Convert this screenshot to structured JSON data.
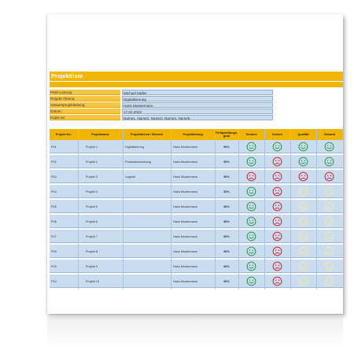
{
  "title": "Projektliste",
  "info": [
    {
      "label": "PMO-Leitung:",
      "value": "Michael Müller"
    },
    {
      "label": "Projekt-Thema:",
      "value": "Digitalisierung"
    },
    {
      "label": "Gesamtprojektleitung:",
      "value": "Hans Mustermann"
    },
    {
      "label": "Datum:",
      "value": "17.02.2023"
    },
    {
      "label": "Kopie an:",
      "value": "Name1, Name2, Name3, Name4, Name5"
    }
  ],
  "headers": {
    "nr": "Projekt-Nr.:",
    "name": "Projektname",
    "thema": "Projektthema / Bereich",
    "leitung": "Projektleitung",
    "grad": "Fertigstellungs-grad",
    "termine": "Termine",
    "kosten": "Kosten",
    "qualitaet": "Qualität",
    "gesamt": "Gesamt"
  },
  "colors": {
    "accent": "#f2b600",
    "row": "#c9dcf0",
    "good": "#2e9a46",
    "bad": "#d6262c",
    "neutral": "#f3e9a6"
  },
  "rows": [
    {
      "nr": "P01",
      "name": "Projekt 1",
      "thema": "Digitalisierung",
      "leitung": "Hans Mustermann",
      "grad": "50%",
      "status": [
        "good",
        "good",
        "good",
        "good"
      ]
    },
    {
      "nr": "P02",
      "name": "Projekt 2",
      "thema": "Produktentwicklung",
      "leitung": "Hans Mustermann",
      "grad": "50%",
      "status": [
        "good",
        "bad",
        "good",
        "good"
      ]
    },
    {
      "nr": "P03",
      "name": "Projekt 3",
      "thema": "Logistik",
      "leitung": "Hans Mustermann",
      "grad": "50%",
      "status": [
        "bad",
        "bad",
        "bad",
        "bad"
      ]
    },
    {
      "nr": "P04",
      "name": "Projekt 4",
      "thema": "",
      "leitung": "Hans Mustermann",
      "grad": "50%",
      "status": [
        "good",
        "bad",
        "neutral",
        "neutral"
      ]
    },
    {
      "nr": "P05",
      "name": "Projekt 5",
      "thema": "",
      "leitung": "Hans Mustermann",
      "grad": "50%",
      "status": [
        "good",
        "bad",
        "neutral",
        "neutral"
      ]
    },
    {
      "nr": "P06",
      "name": "Projekt 6",
      "thema": "",
      "leitung": "Hans Mustermann",
      "grad": "50%",
      "status": [
        "good",
        "bad",
        "neutral",
        "neutral"
      ]
    },
    {
      "nr": "P07",
      "name": "Projekt 7",
      "thema": "",
      "leitung": "Hans Mustermann",
      "grad": "50%",
      "status": [
        "good",
        "bad",
        "neutral",
        "neutral"
      ]
    },
    {
      "nr": "P08",
      "name": "Projekt 8",
      "thema": "",
      "leitung": "Hans Mustermann",
      "grad": "50%",
      "status": [
        "good",
        "bad",
        "neutral",
        "neutral"
      ]
    },
    {
      "nr": "P09",
      "name": "Projekt 9",
      "thema": "",
      "leitung": "Hans Mustermann",
      "grad": "50%",
      "status": [
        "good",
        "bad",
        "neutral",
        "neutral"
      ]
    },
    {
      "nr": "P10",
      "name": "Projekt 10",
      "thema": "",
      "leitung": "Hans Mustermann",
      "grad": "50%",
      "status": [
        "good",
        "bad",
        "neutral",
        "neutral"
      ]
    }
  ]
}
